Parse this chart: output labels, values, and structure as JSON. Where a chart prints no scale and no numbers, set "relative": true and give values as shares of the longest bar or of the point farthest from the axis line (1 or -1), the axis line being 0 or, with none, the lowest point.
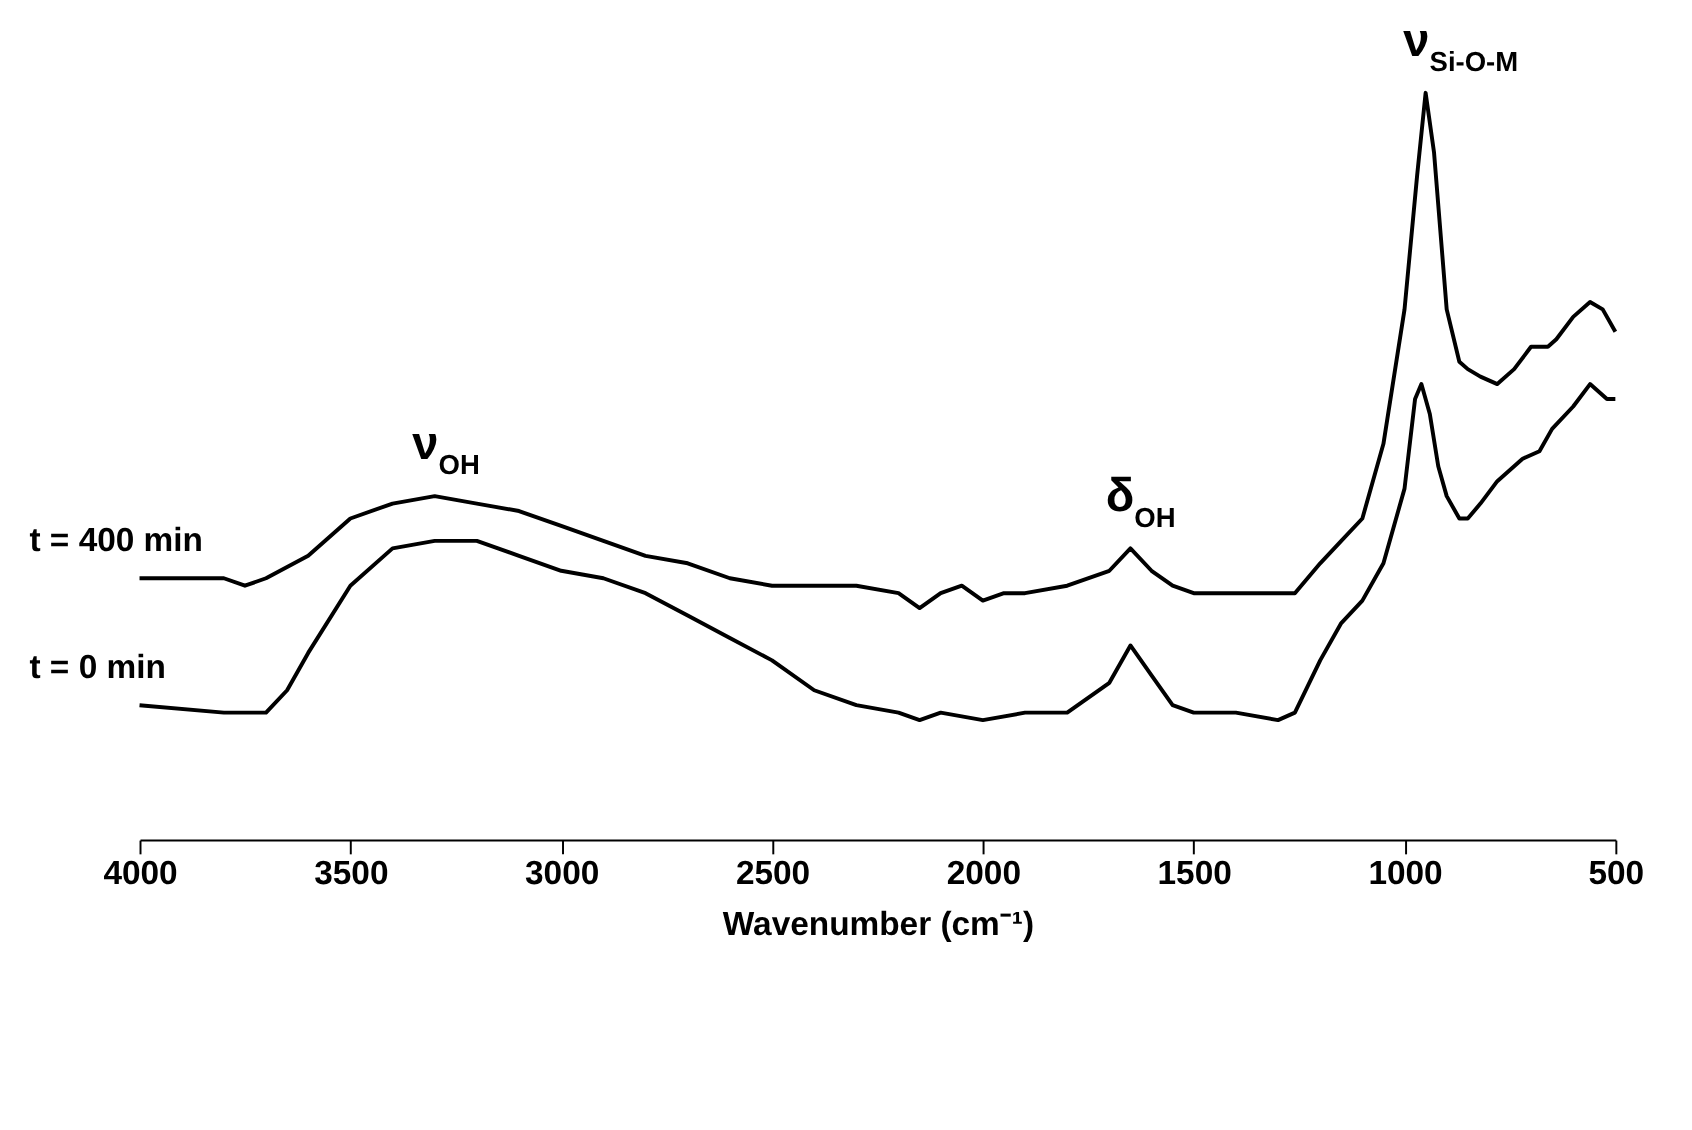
{
  "chart_data": {
    "type": "line",
    "relative": true,
    "xlabel": "Wavenumber (cm⁻¹)",
    "xlim": [
      4000,
      500
    ],
    "xticks": [
      4000,
      3500,
      3000,
      2500,
      2000,
      1500,
      1000,
      500
    ],
    "marker": "none",
    "line_style": "solid",
    "x": [
      4000,
      3800,
      3700,
      3650,
      3600,
      3500,
      3400,
      3300,
      3200,
      3100,
      3000,
      2900,
      2800,
      2700,
      2600,
      2500,
      2400,
      2300,
      2200,
      2150,
      2100,
      2000,
      1900,
      1800,
      1700,
      1650,
      1600,
      1550,
      1500,
      1400,
      1300,
      1260,
      1200,
      1150,
      1100,
      1050,
      1000,
      975,
      960,
      940,
      920,
      900,
      870,
      850,
      820,
      780,
      720,
      680,
      650,
      600,
      560,
      520,
      500
    ],
    "series": [
      {
        "name": "t = 400 min",
        "color": "#000000",
        "x": [
          4000,
          3800,
          3750,
          3700,
          3600,
          3500,
          3400,
          3300,
          3200,
          3100,
          3000,
          2900,
          2800,
          2700,
          2600,
          2500,
          2400,
          2300,
          2200,
          2150,
          2100,
          2050,
          2000,
          1950,
          1900,
          1800,
          1700,
          1650,
          1600,
          1550,
          1500,
          1400,
          1300,
          1260,
          1200,
          1150,
          1100,
          1050,
          1000,
          970,
          950,
          930,
          900,
          870,
          850,
          820,
          780,
          740,
          700,
          680,
          660,
          640,
          600,
          560,
          530,
          500
        ],
        "values": [
          0.35,
          0.35,
          0.34,
          0.35,
          0.38,
          0.43,
          0.45,
          0.46,
          0.45,
          0.44,
          0.42,
          0.4,
          0.38,
          0.37,
          0.35,
          0.34,
          0.34,
          0.34,
          0.33,
          0.31,
          0.33,
          0.34,
          0.32,
          0.33,
          0.33,
          0.34,
          0.36,
          0.39,
          0.36,
          0.34,
          0.33,
          0.33,
          0.33,
          0.33,
          0.37,
          0.4,
          0.43,
          0.53,
          0.71,
          0.89,
          1.0,
          0.92,
          0.71,
          0.64,
          0.63,
          0.62,
          0.61,
          0.63,
          0.66,
          0.66,
          0.66,
          0.67,
          0.7,
          0.72,
          0.71,
          0.68
        ]
      },
      {
        "name": "t = 0 min",
        "color": "#000000",
        "values": [
          0.18,
          0.17,
          0.17,
          0.2,
          0.25,
          0.34,
          0.39,
          0.4,
          0.4,
          0.38,
          0.36,
          0.35,
          0.33,
          0.3,
          0.27,
          0.24,
          0.2,
          0.18,
          0.17,
          0.16,
          0.17,
          0.16,
          0.17,
          0.17,
          0.21,
          0.26,
          0.22,
          0.18,
          0.17,
          0.17,
          0.16,
          0.17,
          0.24,
          0.29,
          0.32,
          0.37,
          0.47,
          0.59,
          0.61,
          0.57,
          0.5,
          0.46,
          0.43,
          0.43,
          0.45,
          0.48,
          0.51,
          0.52,
          0.55,
          0.58,
          0.61,
          0.59,
          0.59
        ]
      }
    ],
    "annotations": [
      {
        "text": "ν$_{OH}$",
        "x": 3300,
        "y": 0.46
      },
      {
        "text": "δ$_{OH}$",
        "x": 1650,
        "y": 0.39
      },
      {
        "text": "ν$_{Si-O-M}$",
        "x": 950,
        "y": 1.0
      }
    ]
  }
}
